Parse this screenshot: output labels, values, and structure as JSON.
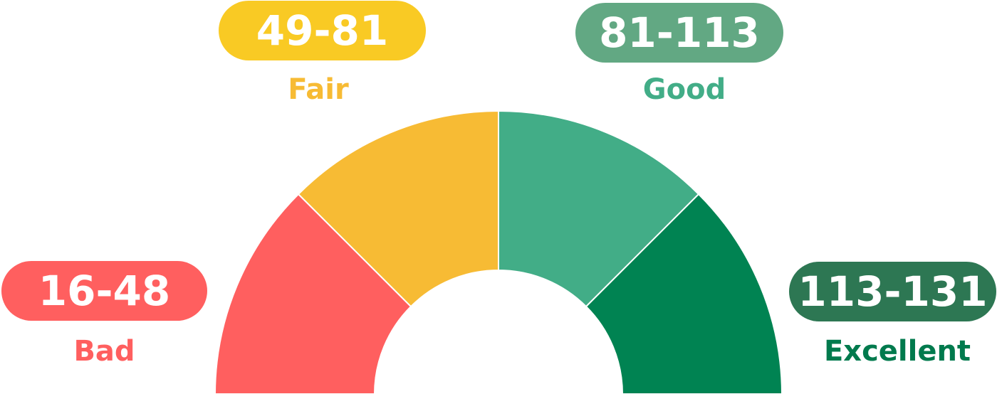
{
  "gauge": {
    "segments": [
      {
        "key": "bad",
        "range": "16-48",
        "label": "Bad",
        "pill_color": "#ff5f5f",
        "arc_color": "#ff5f5f",
        "label_color": "#ff5f5f"
      },
      {
        "key": "fair",
        "range": "49-81",
        "label": "Fair",
        "pill_color": "#f9ca24",
        "arc_color": "#f7bb34",
        "label_color": "#f7bb34"
      },
      {
        "key": "good",
        "range": "81-113",
        "label": "Good",
        "pill_color": "#62a883",
        "arc_color": "#42ad87",
        "label_color": "#42ad87"
      },
      {
        "key": "excellent",
        "range": "113-131",
        "label": "Excellent",
        "pill_color": "#2d7753",
        "arc_color": "#008352",
        "label_color": "#007a4d"
      }
    ]
  }
}
